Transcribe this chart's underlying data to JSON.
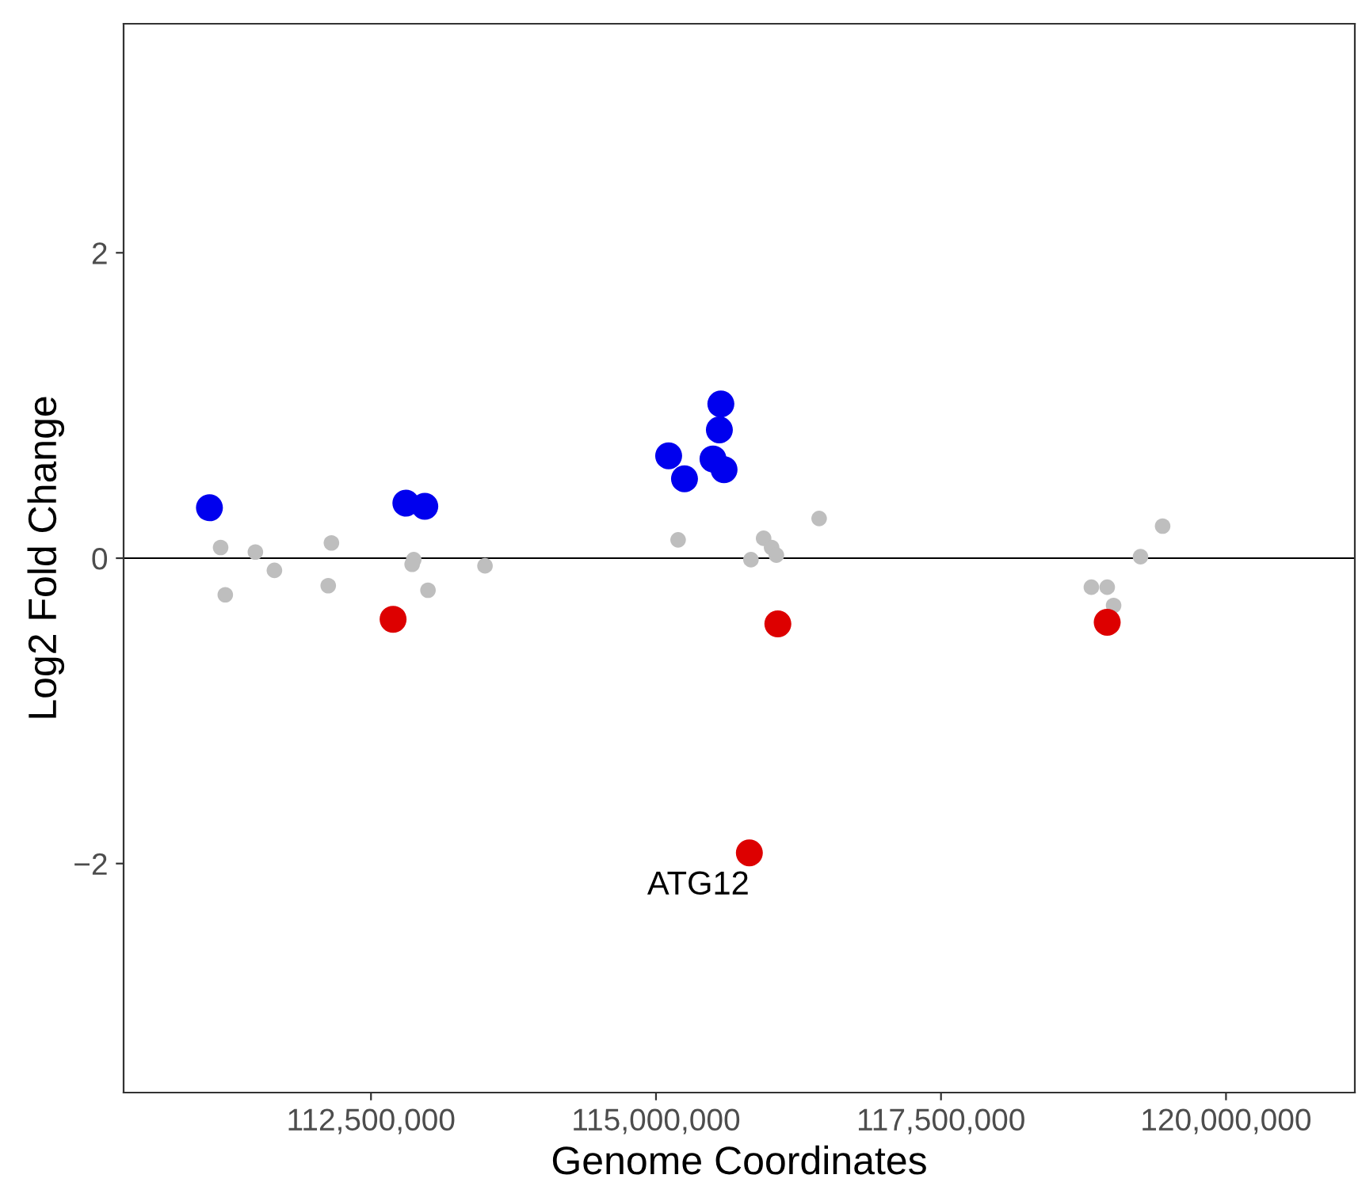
{
  "chart_data": {
    "type": "scatter",
    "xlabel": "Genome Coordinates",
    "ylabel": "Log2 Fold Change",
    "xlim": [
      110330000,
      121130000
    ],
    "ylim": [
      -3.5,
      3.5
    ],
    "xticks": [
      {
        "value": 112500000,
        "label": "112,500,000"
      },
      {
        "value": 115000000,
        "label": "115,000,000"
      },
      {
        "value": 117500000,
        "label": "117,500,000"
      },
      {
        "value": 120000000,
        "label": "120,000,000"
      }
    ],
    "yticks": [
      {
        "value": -2,
        "label": "−2"
      },
      0,
      2
    ],
    "grid": false,
    "marker": "circle",
    "series": [
      {
        "color": "#bebebe",
        "x": [
          111181000,
          111222000,
          111486000,
          111653000,
          112153000,
          112125000,
          112875000,
          112861000,
          113000000,
          113500000,
          115194000,
          115833000,
          115944000,
          116014000,
          116056000,
          116431000,
          118819000,
          118958000,
          119014000,
          119250000,
          119444000
        ],
        "values": [
          0.07,
          -0.24,
          0.04,
          -0.08,
          0.1,
          -0.18,
          -0.01,
          -0.04,
          -0.21,
          -0.05,
          0.12,
          -0.01,
          0.13,
          0.07,
          0.02,
          0.26,
          -0.19,
          -0.19,
          -0.31,
          0.01,
          0.21
        ]
      },
      {
        "color": "#0000ee",
        "x": [
          111083000,
          112806000,
          112972000,
          115111000,
          115250000,
          115500000,
          115569000,
          115556000,
          115597000
        ],
        "values": [
          0.33,
          0.36,
          0.34,
          0.67,
          0.52,
          0.65,
          1.01,
          0.84,
          0.58
        ]
      },
      {
        "color": "#dd0000",
        "x": [
          112694000,
          116069000,
          118958000,
          115819000
        ],
        "values": [
          -0.4,
          -0.43,
          -0.42,
          -1.93
        ]
      }
    ],
    "ref_lines": [
      {
        "axis": "y",
        "value": 0,
        "color": "#000000"
      }
    ],
    "annotations": [
      {
        "text": "ATG12",
        "x": 115819000,
        "y": -1.93
      }
    ]
  }
}
